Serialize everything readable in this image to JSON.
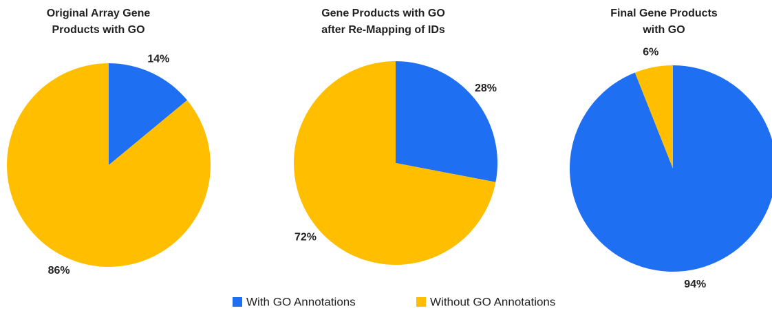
{
  "legend": [
    {
      "name": "With GO Annotations",
      "color": "#1f6ff2"
    },
    {
      "name": "Without GO Annotations",
      "color": "#ffbf00"
    }
  ],
  "chart_data": [
    {
      "type": "pie",
      "title": "Original Array Gene Products with GO",
      "values": [
        14,
        86
      ],
      "value_labels": [
        "14%",
        "86%"
      ]
    },
    {
      "type": "pie",
      "title": "Gene Products with GO after Re-Mapping of IDs",
      "values": [
        28,
        72
      ],
      "value_labels": [
        "28%",
        "72%"
      ]
    },
    {
      "type": "pie",
      "title": "Final Gene Products with GO",
      "values": [
        94,
        6
      ],
      "value_labels": [
        "94%",
        "6%"
      ]
    }
  ]
}
